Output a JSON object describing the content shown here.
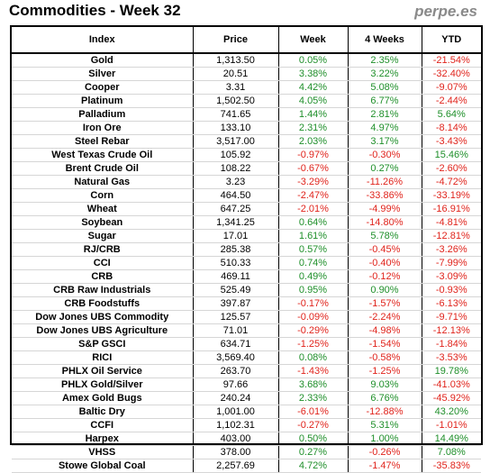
{
  "header": {
    "title": "Commodities - Week 32",
    "brand": "perpe.es"
  },
  "table": {
    "columns": [
      "Index",
      "Price",
      "Week",
      "4 Weeks",
      "YTD"
    ],
    "rows": [
      {
        "name": "Gold",
        "price": "1,313.50",
        "week": "0.05%",
        "w4": "2.35%",
        "ytd": "-21.54%"
      },
      {
        "name": "Silver",
        "price": "20.51",
        "week": "3.38%",
        "w4": "3.22%",
        "ytd": "-32.40%"
      },
      {
        "name": "Cooper",
        "price": "3.31",
        "week": "4.42%",
        "w4": "5.08%",
        "ytd": "-9.07%"
      },
      {
        "name": "Platinum",
        "price": "1,502.50",
        "week": "4.05%",
        "w4": "6.77%",
        "ytd": "-2.44%"
      },
      {
        "name": "Palladium",
        "price": "741.65",
        "week": "1.44%",
        "w4": "2.81%",
        "ytd": "5.64%"
      },
      {
        "name": "Iron Ore",
        "price": "133.10",
        "week": "2.31%",
        "w4": "4.97%",
        "ytd": "-8.14%"
      },
      {
        "name": "Steel Rebar",
        "price": "3,517.00",
        "week": "2.03%",
        "w4": "3.17%",
        "ytd": "-3.43%"
      },
      {
        "name": "West Texas Crude Oil",
        "price": "105.92",
        "week": "-0.97%",
        "w4": "-0.30%",
        "ytd": "15.46%"
      },
      {
        "name": "Brent Crude Oil",
        "price": "108.22",
        "week": "-0.67%",
        "w4": "0.27%",
        "ytd": "-2.60%"
      },
      {
        "name": "Natural Gas",
        "price": "3.23",
        "week": "-3.29%",
        "w4": "-11.26%",
        "ytd": "-4.72%"
      },
      {
        "name": "Corn",
        "price": "464.50",
        "week": "-2.47%",
        "w4": "-33.86%",
        "ytd": "-33.19%"
      },
      {
        "name": "Wheat",
        "price": "647.25",
        "week": "-2.01%",
        "w4": "-4.99%",
        "ytd": "-16.91%"
      },
      {
        "name": "Soybean",
        "price": "1,341.25",
        "week": "0.64%",
        "w4": "-14.80%",
        "ytd": "-4.81%"
      },
      {
        "name": "Sugar",
        "price": "17.01",
        "week": "1.61%",
        "w4": "5.78%",
        "ytd": "-12.81%"
      },
      {
        "name": "RJ/CRB",
        "price": "285.38",
        "week": "0.57%",
        "w4": "-0.45%",
        "ytd": "-3.26%"
      },
      {
        "name": "CCI",
        "price": "510.33",
        "week": "0.74%",
        "w4": "-0.40%",
        "ytd": "-7.99%"
      },
      {
        "name": "CRB",
        "price": "469.11",
        "week": "0.49%",
        "w4": "-0.12%",
        "ytd": "-3.09%"
      },
      {
        "name": "CRB Raw Industrials",
        "price": "525.49",
        "week": "0.95%",
        "w4": "0.90%",
        "ytd": "-0.93%"
      },
      {
        "name": "CRB Foodstuffs",
        "price": "397.87",
        "week": "-0.17%",
        "w4": "-1.57%",
        "ytd": "-6.13%"
      },
      {
        "name": "Dow Jones UBS Commodity",
        "price": "125.57",
        "week": "-0.09%",
        "w4": "-2.24%",
        "ytd": "-9.71%"
      },
      {
        "name": "Dow Jones UBS Agriculture",
        "price": "71.01",
        "week": "-0.29%",
        "w4": "-4.98%",
        "ytd": "-12.13%"
      },
      {
        "name": "S&P GSCI",
        "price": "634.71",
        "week": "-1.25%",
        "w4": "-1.54%",
        "ytd": "-1.84%"
      },
      {
        "name": "RICI",
        "price": "3,569.40",
        "week": "0.08%",
        "w4": "-0.58%",
        "ytd": "-3.53%"
      },
      {
        "name": "PHLX Oil Service",
        "price": "263.70",
        "week": "-1.43%",
        "w4": "-1.25%",
        "ytd": "19.78%"
      },
      {
        "name": "PHLX Gold/Silver",
        "price": "97.66",
        "week": "3.68%",
        "w4": "9.03%",
        "ytd": "-41.03%"
      },
      {
        "name": "Amex Gold Bugs",
        "price": "240.24",
        "week": "2.33%",
        "w4": "6.76%",
        "ytd": "-45.92%"
      },
      {
        "name": "Baltic Dry",
        "price": "1,001.00",
        "week": "-6.01%",
        "w4": "-12.88%",
        "ytd": "43.20%"
      },
      {
        "name": "CCFI",
        "price": "1,102.31",
        "week": "-0.27%",
        "w4": "5.31%",
        "ytd": "-1.01%"
      },
      {
        "name": "Harpex",
        "price": "403.00",
        "week": "0.50%",
        "w4": "1.00%",
        "ytd": "14.49%"
      },
      {
        "name": "VHSS",
        "price": "378.00",
        "week": "0.27%",
        "w4": "-0.26%",
        "ytd": "7.08%"
      },
      {
        "name": "Stowe Global Coal",
        "price": "2,257.69",
        "week": "4.72%",
        "w4": "-1.47%",
        "ytd": "-35.83%"
      }
    ]
  },
  "colors": {
    "positive": "#1f8f2a",
    "negative": "#e0241c",
    "brand": "#8a8a8a"
  }
}
